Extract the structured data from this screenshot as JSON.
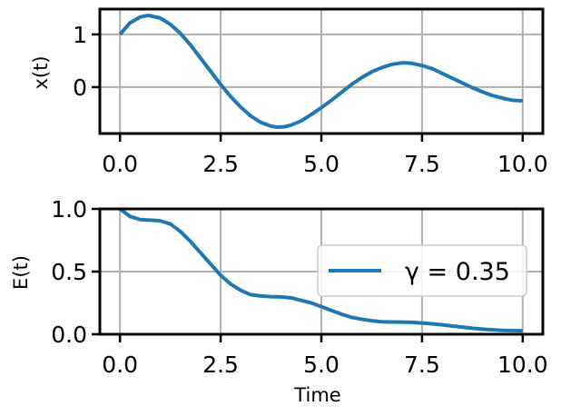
{
  "chart_data": [
    {
      "type": "line",
      "xlabel": "",
      "ylabel": "x(t)",
      "xlim": [
        -0.5,
        10.5
      ],
      "ylim": [
        -0.88,
        1.48
      ],
      "grid": true,
      "xticks": [
        0.0,
        2.5,
        5.0,
        7.5,
        10.0
      ],
      "xtick_labels": [
        "0.0",
        "2.5",
        "5.0",
        "7.5",
        "10.0"
      ],
      "yticks": [
        1,
        0
      ],
      "ytick_labels": [
        "1",
        "0"
      ],
      "colors": {
        "line": "#1f77b4",
        "grid": "#b0b0b0"
      },
      "series": [
        {
          "name": "",
          "x": [
            0.0,
            0.25,
            0.5,
            0.7,
            1.0,
            1.25,
            1.5,
            1.75,
            2.0,
            2.25,
            2.5,
            2.75,
            3.0,
            3.25,
            3.5,
            3.75,
            3.9,
            4.1,
            4.25,
            4.5,
            4.75,
            5.0,
            5.25,
            5.5,
            5.75,
            6.0,
            6.25,
            6.5,
            6.75,
            7.0,
            7.1,
            7.25,
            7.5,
            7.75,
            8.0,
            8.25,
            8.5,
            8.75,
            9.0,
            9.25,
            9.5,
            9.75,
            10.0
          ],
          "y": [
            1.0,
            1.22,
            1.33,
            1.36,
            1.31,
            1.19,
            1.02,
            0.8,
            0.55,
            0.3,
            0.05,
            -0.18,
            -0.38,
            -0.55,
            -0.67,
            -0.74,
            -0.76,
            -0.75,
            -0.72,
            -0.64,
            -0.52,
            -0.39,
            -0.25,
            -0.1,
            0.05,
            0.18,
            0.29,
            0.37,
            0.43,
            0.46,
            0.46,
            0.45,
            0.41,
            0.35,
            0.26,
            0.17,
            0.08,
            -0.01,
            -0.09,
            -0.16,
            -0.21,
            -0.25,
            -0.26
          ]
        }
      ]
    },
    {
      "type": "line",
      "xlabel": "Time",
      "ylabel": "E(t)",
      "xlim": [
        -0.5,
        10.5
      ],
      "ylim": [
        0.0,
        1.0
      ],
      "grid": true,
      "legend": "right",
      "xticks": [
        0.0,
        2.5,
        5.0,
        7.5,
        10.0
      ],
      "xtick_labels": [
        "0.0",
        "2.5",
        "5.0",
        "7.5",
        "10.0"
      ],
      "yticks": [
        1.0,
        0.5,
        0.0
      ],
      "ytick_labels": [
        "1.0",
        "0.5",
        "0.0"
      ],
      "colors": {
        "line": "#1f77b4",
        "grid": "#b0b0b0"
      },
      "series": [
        {
          "name": "γ = 0.35",
          "x": [
            0.0,
            0.25,
            0.5,
            0.75,
            1.0,
            1.25,
            1.5,
            1.75,
            2.0,
            2.25,
            2.5,
            2.75,
            3.0,
            3.25,
            3.5,
            3.75,
            4.0,
            4.25,
            4.5,
            4.75,
            5.0,
            5.25,
            5.5,
            5.75,
            6.0,
            6.25,
            6.5,
            6.75,
            7.0,
            7.25,
            7.5,
            7.75,
            8.0,
            8.25,
            8.5,
            8.75,
            9.0,
            9.25,
            9.5,
            9.75,
            10.0
          ],
          "y": [
            1.0,
            0.94,
            0.915,
            0.91,
            0.905,
            0.88,
            0.82,
            0.74,
            0.65,
            0.56,
            0.47,
            0.4,
            0.35,
            0.315,
            0.305,
            0.3,
            0.298,
            0.29,
            0.27,
            0.25,
            0.22,
            0.19,
            0.16,
            0.135,
            0.12,
            0.108,
            0.1,
            0.098,
            0.097,
            0.095,
            0.09,
            0.083,
            0.075,
            0.066,
            0.057,
            0.048,
            0.041,
            0.035,
            0.031,
            0.029,
            0.028
          ]
        }
      ]
    }
  ]
}
